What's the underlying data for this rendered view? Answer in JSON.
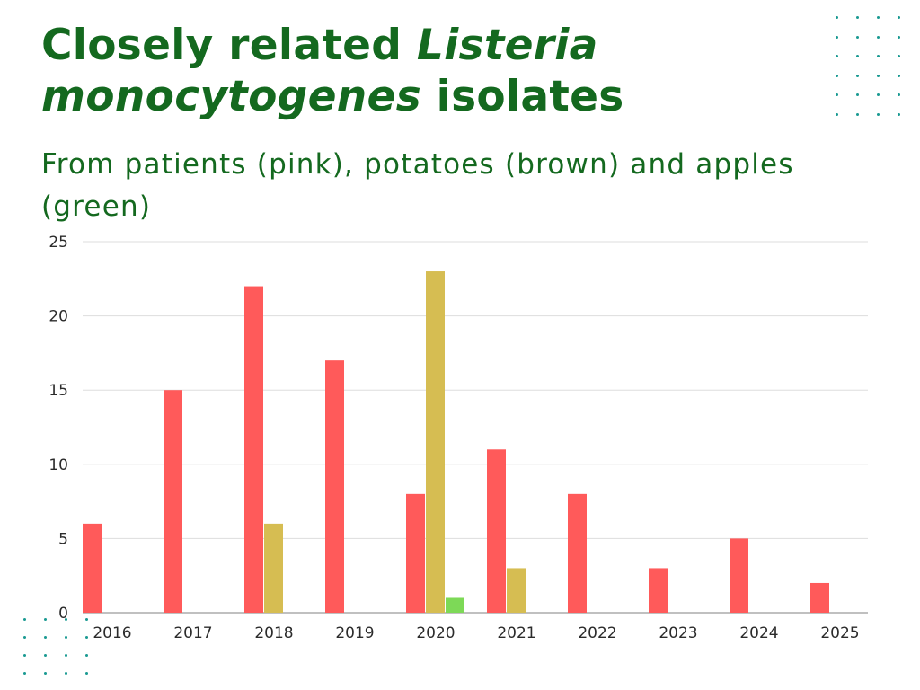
{
  "title": {
    "part1": "Closely related ",
    "italic": "Listeria monocytogenes",
    "part2": " isolates"
  },
  "subtitle": "From patients (pink), potatoes (brown) and apples (green)",
  "colors": {
    "title": "#14691f",
    "patients": "#ff5a5a",
    "potatoes": "#d6bd52",
    "apples": "#7dd957",
    "gridline": "#dddddd",
    "dots": "#1a9a92"
  },
  "chart_data": {
    "type": "bar",
    "categories": [
      "2016",
      "2017",
      "2018",
      "2019",
      "2020",
      "2021",
      "2022",
      "2023",
      "2024",
      "2025"
    ],
    "series": [
      {
        "values": [
          6,
          15,
          22,
          17,
          8,
          11,
          8,
          3,
          5,
          2
        ],
        "color": "#ff5a5a"
      },
      {
        "values": [
          0,
          0,
          6,
          0,
          23,
          3,
          0,
          0,
          0,
          0
        ],
        "color": "#d6bd52"
      },
      {
        "values": [
          0,
          0,
          0,
          0,
          1,
          0,
          0,
          0,
          0,
          0
        ],
        "color": "#7dd957"
      }
    ],
    "ylim": [
      0,
      25
    ],
    "yticks": [
      0,
      5,
      10,
      15,
      20,
      25
    ],
    "grid": true,
    "legend": "none"
  }
}
